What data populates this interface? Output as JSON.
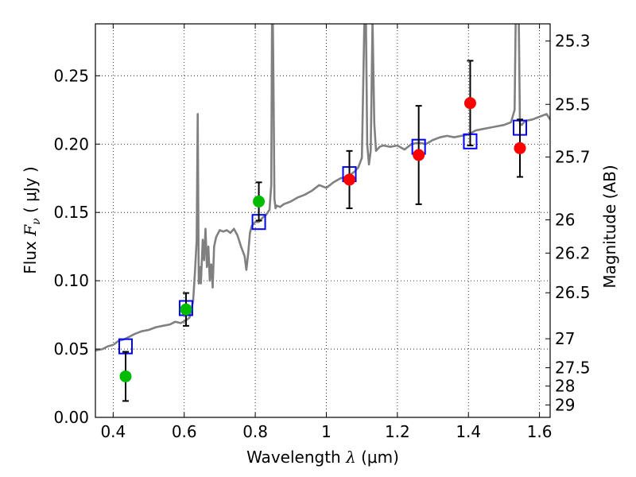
{
  "chart_data": {
    "type": "scatter",
    "xlabel": {
      "prefix": "Wavelength  ",
      "symbol": "λ",
      "suffix": " (μm)"
    },
    "ylabel": {
      "prefix": "Flux  ",
      "symbol": "F",
      "sub": "ν",
      "suffix": "  ( μJy )"
    },
    "y2label": "Magnitude (AB)",
    "xlim": [
      0.35,
      1.63
    ],
    "ylim": [
      0.0,
      0.288
    ],
    "grid": true,
    "x_ticks": [
      {
        "value": 0.4,
        "label": "0.4"
      },
      {
        "value": 0.6,
        "label": "0.6"
      },
      {
        "value": 0.8,
        "label": "0.8"
      },
      {
        "value": 1.0,
        "label": "1"
      },
      {
        "value": 1.2,
        "label": "1.2"
      },
      {
        "value": 1.4,
        "label": "1.4"
      },
      {
        "value": 1.6,
        "label": "1.6"
      }
    ],
    "y_ticks": [
      {
        "value": 0.0,
        "label": "0.00"
      },
      {
        "value": 0.05,
        "label": "0.05"
      },
      {
        "value": 0.1,
        "label": "0.10"
      },
      {
        "value": 0.15,
        "label": "0.15"
      },
      {
        "value": 0.2,
        "label": "0.20"
      },
      {
        "value": 0.25,
        "label": "0.25"
      }
    ],
    "mag_ticks": [
      {
        "value": 25.3,
        "label": "25.3"
      },
      {
        "value": 25.5,
        "label": "25.5"
      },
      {
        "value": 25.7,
        "label": "25.7"
      },
      {
        "value": 26.0,
        "label": "26"
      },
      {
        "value": 26.2,
        "label": "26.2"
      },
      {
        "value": 26.5,
        "label": "26.5"
      },
      {
        "value": 27.0,
        "label": "27"
      },
      {
        "value": 27.5,
        "label": "27.5"
      },
      {
        "value": 28.0,
        "label": "28"
      },
      {
        "value": 29.0,
        "label": "29"
      }
    ],
    "series": [
      {
        "kind": "spectrum-line",
        "color": "#808080",
        "x": [
          0.35,
          0.37,
          0.385,
          0.4,
          0.415,
          0.43,
          0.445,
          0.46,
          0.48,
          0.5,
          0.52,
          0.54,
          0.56,
          0.575,
          0.59,
          0.605,
          0.615,
          0.62,
          0.625,
          0.63,
          0.635,
          0.638,
          0.641,
          0.644,
          0.647,
          0.652,
          0.656,
          0.66,
          0.664,
          0.668,
          0.672,
          0.676,
          0.68,
          0.684,
          0.69,
          0.7,
          0.71,
          0.72,
          0.73,
          0.74,
          0.75,
          0.76,
          0.77,
          0.775,
          0.78,
          0.785,
          0.79,
          0.8,
          0.81,
          0.82,
          0.83,
          0.84,
          0.845,
          0.848,
          0.851,
          0.854,
          0.857,
          0.86,
          0.87,
          0.88,
          0.9,
          0.92,
          0.94,
          0.96,
          0.98,
          1.0,
          1.02,
          1.04,
          1.06,
          1.08,
          1.09,
          1.1,
          1.105,
          1.11,
          1.115,
          1.12,
          1.125,
          1.13,
          1.135,
          1.14,
          1.15,
          1.16,
          1.18,
          1.2,
          1.22,
          1.24,
          1.26,
          1.28,
          1.3,
          1.32,
          1.34,
          1.36,
          1.38,
          1.4,
          1.42,
          1.44,
          1.46,
          1.48,
          1.5,
          1.52,
          1.53,
          1.535,
          1.54,
          1.545,
          1.55,
          1.56,
          1.58,
          1.6,
          1.62,
          1.63
        ],
        "y": [
          0.049,
          0.05,
          0.052,
          0.053,
          0.056,
          0.057,
          0.059,
          0.061,
          0.063,
          0.064,
          0.066,
          0.067,
          0.068,
          0.07,
          0.069,
          0.071,
          0.073,
          0.079,
          0.085,
          0.105,
          0.13,
          0.222,
          0.098,
          0.11,
          0.098,
          0.13,
          0.115,
          0.138,
          0.11,
          0.125,
          0.1,
          0.112,
          0.095,
          0.125,
          0.132,
          0.137,
          0.136,
          0.137,
          0.135,
          0.138,
          0.133,
          0.125,
          0.118,
          0.108,
          0.12,
          0.135,
          0.14,
          0.143,
          0.143,
          0.146,
          0.148,
          0.152,
          0.17,
          0.33,
          0.25,
          0.16,
          0.153,
          0.155,
          0.154,
          0.156,
          0.158,
          0.161,
          0.163,
          0.166,
          0.17,
          0.168,
          0.172,
          0.175,
          0.176,
          0.18,
          0.183,
          0.19,
          0.26,
          0.33,
          0.2,
          0.185,
          0.195,
          0.29,
          0.215,
          0.195,
          0.198,
          0.199,
          0.198,
          0.199,
          0.196,
          0.2,
          0.201,
          0.2,
          0.203,
          0.205,
          0.206,
          0.205,
          0.206,
          0.207,
          0.21,
          0.211,
          0.212,
          0.213,
          0.214,
          0.216,
          0.225,
          0.33,
          0.33,
          0.215,
          0.214,
          0.217,
          0.218,
          0.22,
          0.222,
          0.218
        ]
      },
      {
        "kind": "model-photometry",
        "marker": "open-square",
        "color": "#0000ff",
        "x": [
          0.435,
          0.605,
          0.81,
          1.065,
          1.26,
          1.405,
          1.545
        ],
        "y": [
          0.052,
          0.08,
          0.143,
          0.178,
          0.198,
          0.202,
          0.212
        ]
      },
      {
        "kind": "observed",
        "marker": "filled-circle",
        "color": "#00bb00",
        "x": [
          0.435,
          0.605,
          0.81
        ],
        "y": [
          0.03,
          0.079,
          0.158
        ],
        "err": [
          0.018,
          0.012,
          0.014
        ]
      },
      {
        "kind": "observed",
        "marker": "filled-circle",
        "color": "#ff0000",
        "x": [
          1.065,
          1.26,
          1.405,
          1.545
        ],
        "y": [
          0.174,
          0.192,
          0.23,
          0.197
        ],
        "err": [
          0.021,
          0.036,
          0.031,
          0.021
        ]
      }
    ]
  }
}
